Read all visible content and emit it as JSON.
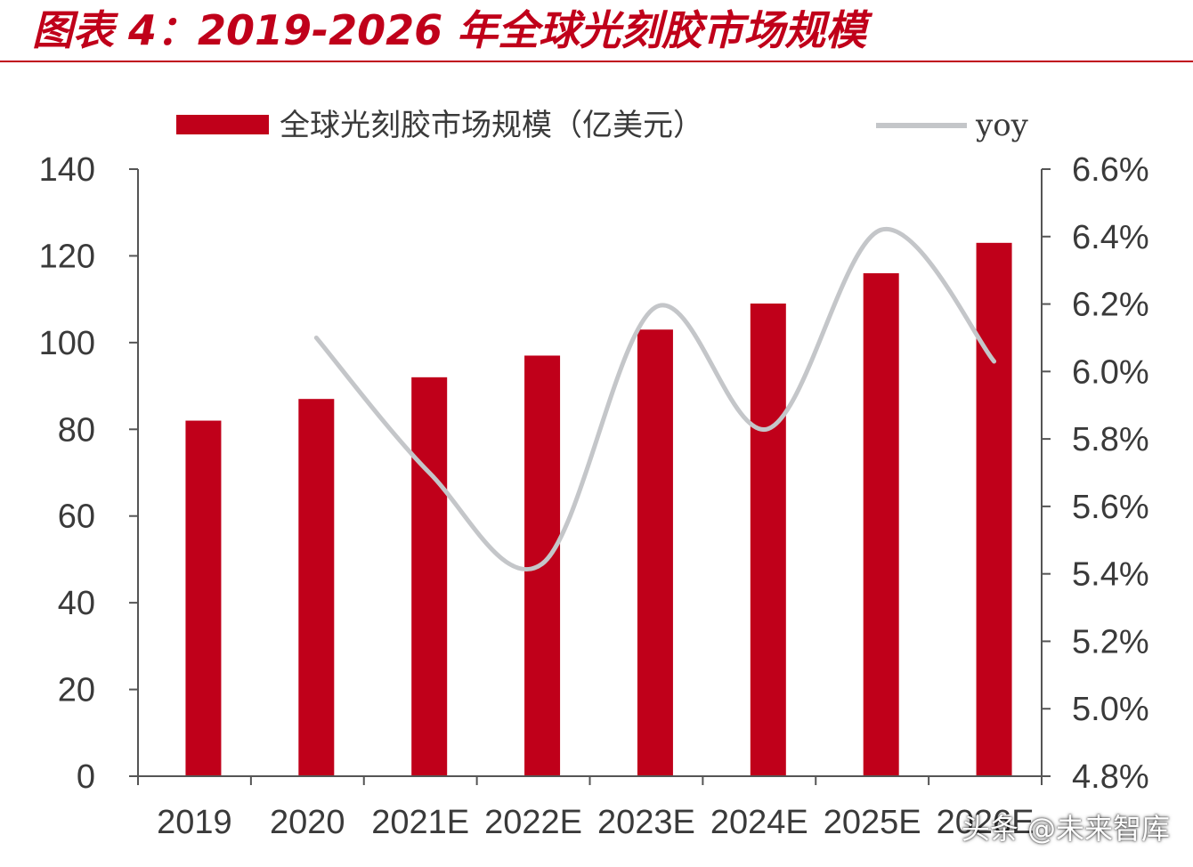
{
  "title": "图表 4：2019-2026 年全球光刻胶市场规模",
  "watermark": "头条 @未来智库",
  "colors": {
    "bar": "#c0001a",
    "line": "#c4c6c9",
    "axis": "#555555",
    "title": "#c0001a"
  },
  "chart_data": {
    "type": "bar",
    "categories": [
      "2019",
      "2020",
      "2021E",
      "2022E",
      "2023E",
      "2024E",
      "2025E",
      "2026E"
    ],
    "series": [
      {
        "name": "全球光刻胶市场规模（亿美元）",
        "type": "bar",
        "axis": "left",
        "values": [
          82,
          87,
          92,
          97,
          103,
          109,
          116,
          123
        ]
      },
      {
        "name": "yoy",
        "type": "line",
        "axis": "right",
        "values": [
          null,
          6.1,
          5.7,
          5.43,
          6.19,
          5.83,
          6.42,
          6.03
        ]
      }
    ],
    "y_left": {
      "min": 0,
      "max": 140,
      "ticks": [
        "0",
        "20",
        "40",
        "60",
        "80",
        "100",
        "120",
        "140"
      ]
    },
    "y_right": {
      "min": 4.8,
      "max": 6.6,
      "ticks": [
        "4.8%",
        "5.0%",
        "5.2%",
        "5.4%",
        "5.6%",
        "5.8%",
        "6.0%",
        "6.2%",
        "6.4%",
        "6.6%"
      ]
    },
    "grid": false,
    "legend": "top"
  }
}
